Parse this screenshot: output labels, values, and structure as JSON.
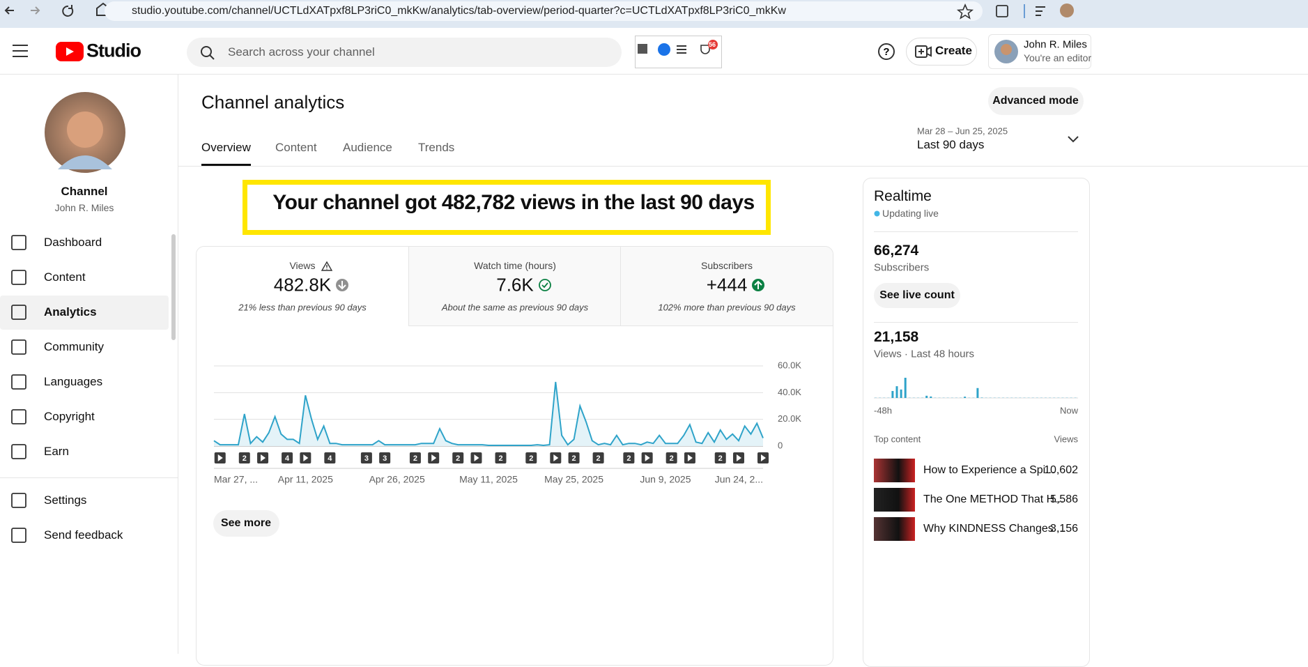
{
  "browser": {
    "url": "studio.youtube.com/channel/UCTLdXATpxf8LP3riC0_mkKw/analytics/tab-overview/period-quarter?c=UCTLdXATpxf8LP3riC0_mkKw"
  },
  "header": {
    "logo": "Studio",
    "search_placeholder": "Search across your channel",
    "badge": "56",
    "create": "Create",
    "user_name": "John R. Miles",
    "user_role": "You're an editor"
  },
  "sidebar": {
    "channel_label": "Channel",
    "channel_name": "John R. Miles",
    "nav": [
      "Dashboard",
      "Content",
      "Analytics",
      "Community",
      "Languages",
      "Copyright",
      "Earn"
    ],
    "active_index": 2,
    "footer_nav": [
      "Settings",
      "Send feedback"
    ]
  },
  "page": {
    "title": "Channel analytics",
    "advanced": "Advanced mode",
    "tabs": [
      "Overview",
      "Content",
      "Audience",
      "Trends"
    ],
    "active_tab": 0,
    "date_range": "Mar 28 – Jun 25, 2025",
    "period": "Last 90 days",
    "headline": "Your channel got 482,782 views in the last 90 days"
  },
  "metrics": [
    {
      "label": "Views",
      "value": "482.8K",
      "comparison": "21% less than previous 90 days",
      "trend": "down",
      "warning": true
    },
    {
      "label": "Watch time (hours)",
      "value": "7.6K",
      "comparison": "About the same as previous 90 days",
      "trend": "same",
      "warning": false
    },
    {
      "label": "Subscribers",
      "value": "+444",
      "comparison": "102% more than previous 90 days",
      "trend": "up",
      "warning": false
    }
  ],
  "chart_data": {
    "type": "line",
    "color": "#2ea3c9",
    "area_color": "#e4f3f8",
    "grid": true,
    "ylim": [
      0,
      60000
    ],
    "yticks": [
      0,
      {
        "value": 20000,
        "label": "20.0K"
      },
      {
        "value": 40000,
        "label": "40.0K"
      },
      {
        "value": 60000,
        "label": "60.0K"
      }
    ],
    "categories": [
      "Mar 27, ...",
      null,
      null,
      null,
      null,
      null,
      null,
      null,
      null,
      null,
      null,
      null,
      null,
      null,
      null,
      "Apr 11, 2025",
      null,
      null,
      null,
      null,
      null,
      null,
      null,
      null,
      null,
      null,
      null,
      null,
      null,
      null,
      "Apr 26, 2025",
      null,
      null,
      null,
      null,
      null,
      null,
      null,
      null,
      null,
      null,
      null,
      null,
      null,
      null,
      "May 11, 2025",
      null,
      null,
      null,
      null,
      null,
      null,
      null,
      null,
      null,
      null,
      null,
      null,
      null,
      "May 25, 2025",
      null,
      null,
      null,
      null,
      null,
      null,
      null,
      null,
      null,
      null,
      null,
      null,
      null,
      null,
      "Jun 9, 2025",
      null,
      null,
      null,
      null,
      null,
      null,
      null,
      null,
      null,
      null,
      null,
      null,
      null,
      null,
      "Jun 24, 2...",
      null
    ],
    "values": [
      4000,
      1000,
      1000,
      1000,
      1000,
      24000,
      2000,
      7000,
      3000,
      10000,
      22000,
      9000,
      5000,
      5000,
      2000,
      38000,
      20000,
      5000,
      15000,
      2000,
      2000,
      1000,
      1000,
      1000,
      1000,
      1000,
      1000,
      4000,
      1000,
      1000,
      1000,
      1000,
      1000,
      1000,
      2000,
      2000,
      2000,
      13000,
      4000,
      2000,
      1000,
      1000,
      1000,
      1000,
      1000,
      500,
      500,
      500,
      500,
      500,
      500,
      500,
      500,
      1000,
      500,
      1000,
      48000,
      8000,
      1000,
      5000,
      30000,
      18000,
      4000,
      1000,
      2000,
      1000,
      8000,
      1000,
      2000,
      2000,
      1000,
      3000,
      2000,
      8000,
      2000,
      2000,
      2000,
      8000,
      16000,
      3000,
      2000,
      10000,
      3000,
      12000,
      5000,
      9000,
      4000,
      15000,
      9000,
      17000,
      6000
    ],
    "events": [
      {
        "x": 1
      },
      {
        "x": 5,
        "label": "2"
      },
      {
        "x": 8
      },
      {
        "x": 12,
        "label": "4"
      },
      {
        "x": 15
      },
      {
        "x": 19,
        "label": "4"
      },
      {
        "x": 25,
        "label": "3"
      },
      {
        "x": 28,
        "label": "3"
      },
      {
        "x": 33,
        "label": "2"
      },
      {
        "x": 36
      },
      {
        "x": 40,
        "label": "2"
      },
      {
        "x": 43
      },
      {
        "x": 47,
        "label": "2"
      },
      {
        "x": 52,
        "label": "2"
      },
      {
        "x": 56
      },
      {
        "x": 59,
        "label": "2"
      },
      {
        "x": 63,
        "label": "2"
      },
      {
        "x": 68,
        "label": "2"
      },
      {
        "x": 71
      },
      {
        "x": 75,
        "label": "2"
      },
      {
        "x": 78
      },
      {
        "x": 83,
        "label": "2"
      },
      {
        "x": 86
      },
      {
        "x": 90
      }
    ],
    "see_more": "See more"
  },
  "realtime": {
    "title": "Realtime",
    "status": "Updating live",
    "subscribers": "66,274",
    "subscribers_label": "Subscribers",
    "live_button": "See live count",
    "views": "21,158",
    "views_label": "Views · Last 48 hours",
    "bars": {
      "color": "#2ea3c9",
      "values": [
        5,
        5,
        5,
        5,
        190,
        320,
        230,
        550,
        5,
        5,
        5,
        5,
        60,
        40,
        5,
        5,
        5,
        5,
        5,
        5,
        5,
        35,
        5,
        5,
        270,
        10,
        5,
        5,
        5,
        5,
        5,
        5,
        5,
        5,
        5,
        5,
        5,
        5,
        5,
        5,
        5,
        5,
        5,
        5,
        5,
        5,
        5,
        5
      ],
      "start_label": "-48h",
      "end_label": "Now"
    },
    "top_header": "Top content",
    "top_views_header": "Views",
    "top": [
      {
        "title": "How to Experience a Spi...",
        "views": "10,602"
      },
      {
        "title": "The One METHOD That H...",
        "views": "5,586"
      },
      {
        "title": "Why KINDNESS Changes ...",
        "views": "3,156"
      }
    ]
  }
}
